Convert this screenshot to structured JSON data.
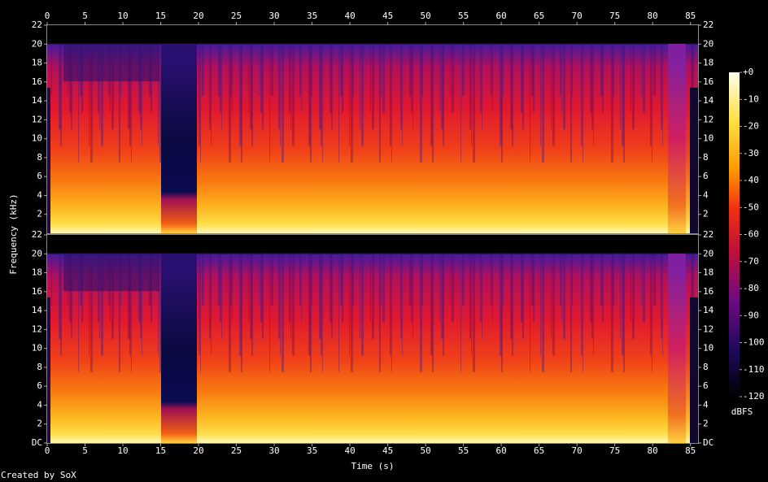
{
  "chart_data": {
    "type": "spectrogram",
    "xlabel": "Time (s)",
    "ylabel": "Frequency (kHz)",
    "xlim": [
      0,
      86
    ],
    "xticks": [
      0,
      5,
      10,
      15,
      20,
      25,
      30,
      35,
      40,
      45,
      50,
      55,
      60,
      65,
      70,
      75,
      80,
      85
    ],
    "ylim": [
      0,
      22
    ],
    "panels": [
      {
        "yticks": [
          2,
          4,
          6,
          8,
          10,
          12,
          14,
          16,
          18,
          20,
          22
        ]
      },
      {
        "yticks": [
          {
            "value": 0,
            "label": "DC"
          },
          2,
          4,
          6,
          8,
          10,
          12,
          14,
          16,
          18,
          20,
          22
        ]
      }
    ],
    "zlim": [
      -120,
      0
    ],
    "zticks": [
      {
        "value": 0,
        "label": "+0"
      },
      -10,
      -20,
      -30,
      -40,
      -50,
      -60,
      -70,
      -80,
      -90,
      -100,
      -110,
      -120
    ],
    "zlabel": "dBFS",
    "footer": "Created by SoX"
  }
}
